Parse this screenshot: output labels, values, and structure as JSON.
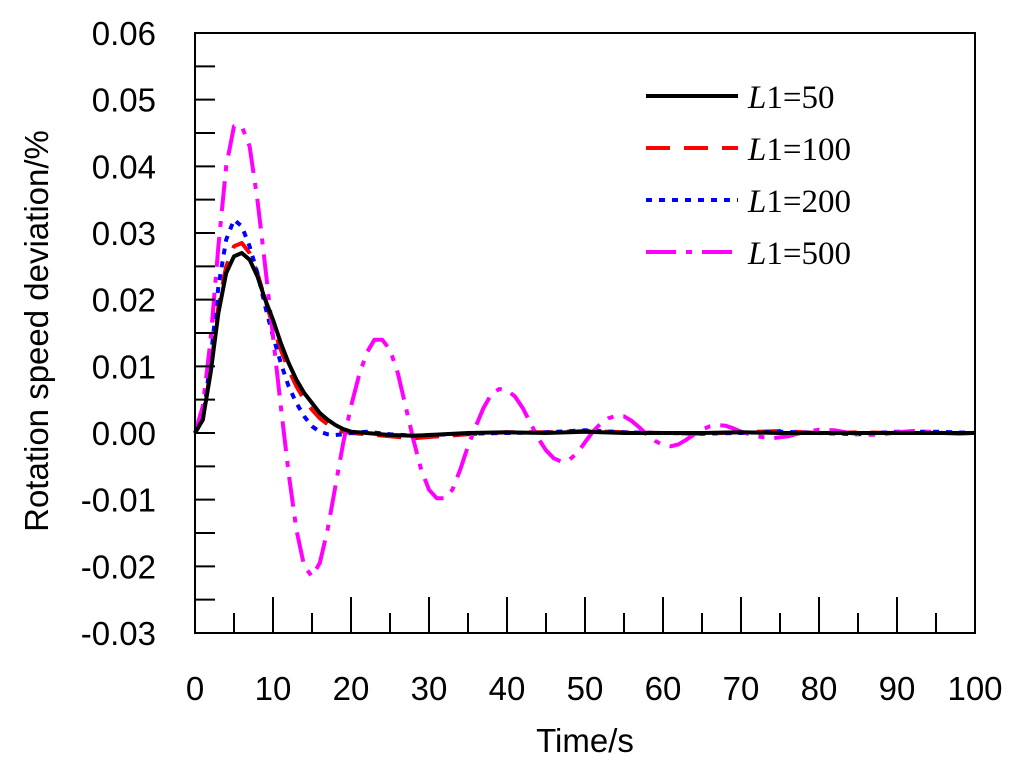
{
  "chart_data": {
    "type": "line",
    "title": "",
    "xlabel": "Time/s",
    "ylabel": "Rotation speed deviation/%",
    "xlim": [
      0,
      100
    ],
    "ylim": [
      -0.03,
      0.06
    ],
    "xticks": [
      0,
      10,
      20,
      30,
      40,
      50,
      60,
      70,
      80,
      90,
      100
    ],
    "xtick_labels": [
      "0",
      "10",
      "20",
      "30",
      "40",
      "50",
      "60",
      "70",
      "80",
      "90",
      "100"
    ],
    "yticks": [
      -0.03,
      -0.02,
      -0.01,
      0.0,
      0.01,
      0.02,
      0.03,
      0.04,
      0.05,
      0.06
    ],
    "ytick_labels": [
      "-0.03",
      "-0.02",
      "-0.01",
      "0.00",
      "0.01",
      "0.02",
      "0.03",
      "0.04",
      "0.05",
      "0.06"
    ],
    "grid": false,
    "legend_position": "top-right",
    "series": [
      {
        "name": "L1=50",
        "legend_var": "L",
        "legend_rest": "1=50",
        "color": "#000000",
        "style": "solid",
        "x": [
          0,
          1,
          2,
          3,
          4,
          5,
          6,
          7,
          8,
          9,
          10,
          11,
          12,
          13,
          14,
          15,
          16,
          17,
          18,
          19,
          20,
          22,
          25,
          28,
          30,
          35,
          40,
          45,
          50,
          55,
          60,
          65,
          70,
          75,
          80,
          85,
          90,
          95,
          100
        ],
        "y": [
          0,
          0.002,
          0.009,
          0.018,
          0.024,
          0.0265,
          0.027,
          0.026,
          0.0235,
          0.02,
          0.017,
          0.0135,
          0.0105,
          0.008,
          0.006,
          0.0045,
          0.003,
          0.002,
          0.0012,
          0.0006,
          0.0002,
          0,
          -0.0003,
          -0.0004,
          -0.0003,
          0,
          0.0001,
          0,
          0.0002,
          0,
          0,
          0,
          0.0001,
          0,
          0,
          0,
          0,
          0,
          0
        ]
      },
      {
        "name": "L1=100",
        "legend_var": "L",
        "legend_rest": "1=100",
        "color": "#ff0000",
        "style": "dashed",
        "x": [
          0,
          1,
          2,
          3,
          4,
          5,
          6,
          7,
          8,
          9,
          10,
          11,
          12,
          13,
          14,
          15,
          16,
          17,
          18,
          19,
          20,
          22,
          25,
          28,
          30,
          35,
          40,
          45,
          50,
          55,
          60,
          65,
          70,
          75,
          80,
          85,
          90,
          95,
          100
        ],
        "y": [
          0,
          0.002,
          0.0095,
          0.019,
          0.025,
          0.028,
          0.0285,
          0.027,
          0.024,
          0.02,
          0.016,
          0.0125,
          0.0095,
          0.007,
          0.005,
          0.0035,
          0.0022,
          0.0013,
          0.0006,
          0.0002,
          0,
          -0.0002,
          -0.0005,
          -0.0008,
          -0.0006,
          -0.0002,
          0.0001,
          0.0001,
          0.0003,
          0.0001,
          0,
          -0.0001,
          0.0001,
          0.0003,
          0,
          0.0001,
          0,
          0,
          0
        ]
      },
      {
        "name": "L1=200",
        "legend_var": "L",
        "legend_rest": "1=200",
        "color": "#0000ff",
        "style": "dotted",
        "x": [
          0,
          1,
          2,
          3,
          4,
          5,
          6,
          7,
          8,
          9,
          10,
          11,
          12,
          13,
          14,
          15,
          16,
          17,
          18,
          19,
          20,
          22,
          25,
          28,
          30,
          35,
          40,
          45,
          50,
          55,
          60,
          65,
          70,
          75,
          80,
          85,
          90,
          95,
          100
        ],
        "y": [
          0,
          0.002,
          0.011,
          0.022,
          0.029,
          0.032,
          0.031,
          0.028,
          0.024,
          0.019,
          0.0145,
          0.0105,
          0.007,
          0.0045,
          0.0025,
          0.001,
          0.0002,
          -0.0002,
          -0.0003,
          -0.0002,
          0,
          0.0002,
          -0.0002,
          -0.0004,
          -0.0003,
          -0.0001,
          0,
          0.0001,
          0.0004,
          0.0001,
          0,
          -0.0001,
          0,
          0.0002,
          0,
          -0.0002,
          0.0002,
          0.0002,
          0
        ]
      },
      {
        "name": "L1=500",
        "legend_var": "L",
        "legend_rest": "1=500",
        "color": "#ff00ff",
        "style": "dashdot",
        "x": [
          0,
          1,
          2,
          3,
          4,
          5,
          6,
          7,
          8,
          9,
          10,
          11,
          12,
          13,
          14,
          15,
          16,
          17,
          18,
          19,
          20,
          21,
          22,
          23,
          24,
          25,
          26,
          27,
          28,
          29,
          30,
          31,
          32,
          33,
          34,
          35,
          36,
          37,
          38,
          39,
          40,
          41,
          42,
          43,
          44,
          45,
          46,
          47,
          48,
          49,
          50,
          51,
          52,
          53,
          54,
          55,
          56,
          57,
          58,
          59,
          60,
          61,
          62,
          63,
          64,
          65,
          66,
          67,
          68,
          69,
          70,
          72,
          74,
          76,
          78,
          80,
          82,
          84,
          86,
          88,
          90,
          92,
          94,
          96,
          98,
          100
        ],
        "y": [
          0,
          0.004,
          0.014,
          0.028,
          0.04,
          0.046,
          0.046,
          0.043,
          0.035,
          0.025,
          0.0145,
          0.004,
          -0.006,
          -0.0145,
          -0.02,
          -0.0215,
          -0.0195,
          -0.0145,
          -0.008,
          -0.0015,
          0.004,
          0.0085,
          0.012,
          0.014,
          0.014,
          0.0125,
          0.009,
          0.004,
          -0.001,
          -0.0055,
          -0.0085,
          -0.0098,
          -0.0098,
          -0.0085,
          -0.0055,
          -0.002,
          0.001,
          0.0038,
          0.0058,
          0.0066,
          0.0064,
          0.0055,
          0.0038,
          0.0015,
          -0.0008,
          -0.0026,
          -0.0038,
          -0.0043,
          -0.004,
          -0.003,
          -0.0014,
          0.0002,
          0.0014,
          0.0022,
          0.0026,
          0.0025,
          0.0018,
          0.0008,
          -0.0003,
          -0.0012,
          -0.0018,
          -0.002,
          -0.0017,
          -0.001,
          -0.0002,
          0.0005,
          0.001,
          0.0012,
          0.0011,
          0.0007,
          0.0002,
          -0.0005,
          -0.0008,
          -0.0005,
          0.0001,
          0.0005,
          0.0004,
          0,
          -0.0003,
          -0.0002,
          0.0001,
          0.0003,
          0.0002,
          0,
          -0.0001,
          0
        ]
      }
    ]
  }
}
